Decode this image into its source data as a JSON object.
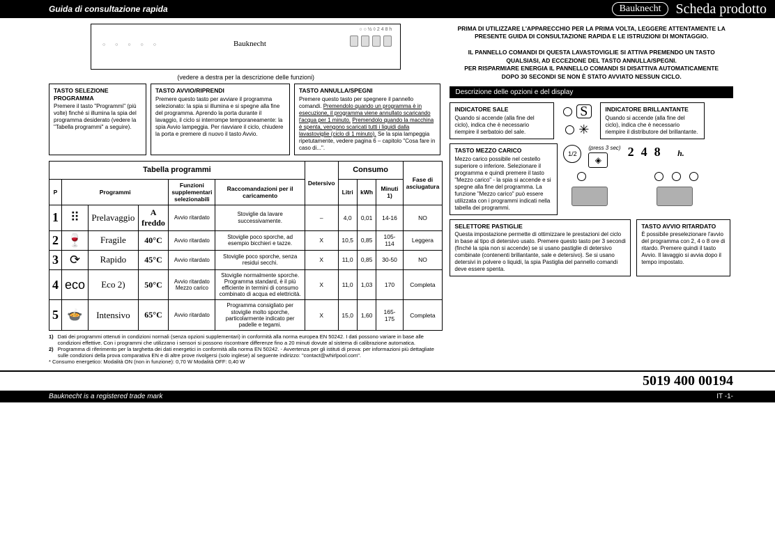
{
  "header": {
    "left": "Guida di consultazione rapida",
    "brand": "Bauknecht",
    "right": "Scheda prodotto"
  },
  "panel": {
    "brand": "Bauknecht",
    "caption": "(vedere a destra per la descrizione delle funzioni)"
  },
  "callouts": {
    "c1": {
      "title": "TASTO SELEZIONE PROGRAMMA",
      "body": "Premere il tasto \"Programmi\" (più volte) finché si illumina la spia del programma desiderato (vedere la \"Tabella programmi\" a seguire)."
    },
    "c2": {
      "title": "TASTO AVVIO/RIPRENDI",
      "body": "Premere questo tasto per avviare il programma selezionato: la spia si illumina e si spegne alla fine del programma.\nAprendo la porta durante il lavaggio, il ciclo si interrompe temporaneamente: la spia Avvio lampeggia. Per riavviare il ciclo, chiudere la porta e premere di nuovo il tasto Avvio."
    },
    "c3": {
      "title": "TASTO ANNULLA/SPEGNI",
      "body": "Premere questo tasto per spegnere il pannello comandi. ",
      "u1": "Premendolo quando un programma è in esecuzione, il programma viene annullato scaricando l'acqua per 1 minuto.",
      "mid": " ",
      "u2": "Premendolo quando la macchina è spenta, vengono scaricati tutti i liquidi dalla lavastoviglie (ciclo di 1 minuto).",
      "tail": " Se la spia lampeggia ripetutamente, vedere pagina 6 – capitolo \"Cosa fare in caso di...\"."
    }
  },
  "table": {
    "title1": "Tabella programmi",
    "title2": "Consumo",
    "h_p": "P",
    "h_prog": "Programmi",
    "h_func": "Funzioni supplementari selezionabili",
    "h_reco": "Raccomandazioni per il caricamento",
    "h_det": "Detersivo",
    "h_lit": "Litri",
    "h_kwh": "kWh",
    "h_min": "Minuti 1)",
    "h_dry": "Fase di asciugatura",
    "rows": [
      {
        "n": "1",
        "icon": "⠿",
        "name": "Prelavaggio",
        "temp": "A freddo",
        "func": "Avvio ritardato",
        "reco": "Stoviglie da lavare successivamente.",
        "det": "–",
        "lit": "4,0",
        "kwh": "0,01",
        "min": "14-16",
        "dry": "NO"
      },
      {
        "n": "2",
        "icon": "🍷",
        "name": "Fragile",
        "temp": "40°C",
        "func": "Avvio ritardato",
        "reco": "Stoviglie poco sporche, ad esempio bicchieri e tazze.",
        "det": "X",
        "lit": "10,5",
        "kwh": "0,85",
        "min": "105-114",
        "dry": "Leggera"
      },
      {
        "n": "3",
        "icon": "⟳",
        "name": "Rapido",
        "temp": "45°C",
        "func": "Avvio ritardato",
        "reco": "Stoviglie poco sporche, senza residui secchi.",
        "det": "X",
        "lit": "11,0",
        "kwh": "0,85",
        "min": "30-50",
        "dry": "NO"
      },
      {
        "n": "4",
        "icon": "eco",
        "name": "Eco 2)",
        "temp": "50°C",
        "func": "Avvio ritardato Mezzo carico",
        "reco": "Stoviglie normalmente sporche.\nProgramma standard, è il più efficiente in termini di consumo combinato di acqua ed elettricità.",
        "det": "X",
        "lit": "11,0",
        "kwh": "1,03",
        "min": "170",
        "dry": "Completa"
      },
      {
        "n": "5",
        "icon": "🍲",
        "name": "Intensivo",
        "temp": "65°C",
        "func": "Avvio ritardato",
        "reco": "Programma consigliato per stoviglie molto sporche, particolarmente indicato per padelle e tegami.",
        "det": "X",
        "lit": "15,0",
        "kwh": "1,60",
        "min": "165-175",
        "dry": "Completa"
      }
    ]
  },
  "notes": {
    "n1": "Dati dei programmi ottenuti in condizioni normali (senza opzioni supplementari) in conformità alla norma europea EN 50242. I dati possono variare in base alle condizioni effettive. Con i programmi che utilizzano i sensori si possono riscontrare differenze fino a 20 minuti dovute al sistema di calibrazione automatica.",
    "n2": "Programma di riferimento per la targhetta dei dati energetici in conformità alla norma EN 50242. - Avvertenza per gli istituti di prova: per informazioni più dettagliate sulle condizioni della prova comparativa EN e di altre prove rivolgersi (solo inglese) al seguente indirizzo: \"contact@whirlpool.com\".",
    "n3": "* Consumo energetico: Modalità ON (non in funzione): 0,70 W Modalità OFF: 0,40 W"
  },
  "warn": {
    "l1": "PRIMA DI UTILIZZARE L'APPARECCHIO PER LA PRIMA VOLTA, LEGGERE ATTENTAMENTE LA PRESENTE GUIDA DI CONSULTAZIONE RAPIDA E LE ISTRUZIONI DI MONTAGGIO.",
    "l2": "IL PANNELLO COMANDI DI QUESTA LAVASTOVIGLIE SI ATTIVA PREMENDO UN TASTO QUALSIASI, AD ECCEZIONE DEL TASTO ANNULLA/SPEGNI.",
    "l3": "PER RISPARMIARE ENERGIA IL PANNELLO COMANDI SI DISATTIVA AUTOMATICAMENTE DOPO 30 SECONDI SE NON È STATO AVVIATO NESSUN CICLO."
  },
  "rh": {
    "sect": "Descrizione delle opzioni e del display",
    "sale": {
      "title": "INDICATORE SALE",
      "body": "Quando si accende (alla fine del ciclo), indica che è necessario riempire il serbatoio del sale."
    },
    "brill": {
      "title": "INDICATORE BRILLANTANTE",
      "body": "Quando si accende (alla fine del ciclo), indica che è necessario riempire il distributore del brillantante."
    },
    "mezzo": {
      "title": "TASTO MEZZO CARICO",
      "body": "Mezzo carico possibile nel cestello superiore o inferiore. Selezionare il programma e quindi premere il tasto \"Mezzo carico\" - la spia si accende e si spegne alla fine del programma. La funzione \"Mezzo carico\" può essere utilizzata con i programmi indicati nella tabella dei programmi."
    },
    "half_label": "1/2",
    "press3": "(press 3 sec)",
    "hours_2": "2",
    "hours_4": "4",
    "hours_8": "8",
    "hours_h": "h.",
    "past": {
      "title": "SELETTORE PASTIGLIE",
      "body": "Questa impostazione permette di ottimizzare le prestazioni del ciclo in base al tipo di detersivo usato.\nPremere questo tasto per 3 secondi (finché la spia non si accende) se si usano pastiglie di detersivo combinate (contenenti brillantante, sale e detersivo).\nSe si usano detersivi in polvere o liquidi, la spia Pastiglia del pannello comandi deve essere spenta."
    },
    "rit": {
      "title": "TASTO AVVIO RITARDATO",
      "body": "È possibile preselezionare l'avvio del programma con 2, 4 o 8 ore di ritardo. Premere quindi il tasto Avvio. Il lavaggio si avvia dopo il tempo impostato."
    }
  },
  "footer": {
    "num": "5019 400 00194",
    "left": "Bauknecht is a registered trade mark",
    "right": "IT -1-"
  }
}
